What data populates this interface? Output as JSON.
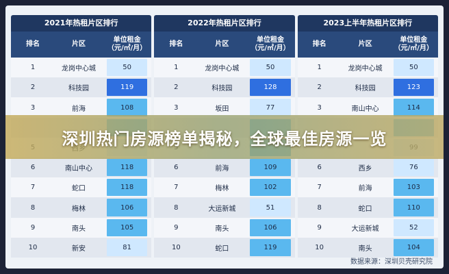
{
  "headline": "深圳热门房源榜单揭秘，全球最佳房源一览",
  "source": "数据来源：深圳贝壳研究院",
  "columns": {
    "rank": "排名",
    "district": "片区",
    "rent": "单位租金\n（元/㎡/月）"
  },
  "colors": {
    "title_bg": "#1f3760",
    "header_bg": "#2a4a7c",
    "rent_light": "#cfe8ff",
    "rent_mid": "#5ab8ef",
    "rent_dark": "#2f6fe0"
  },
  "panels": [
    {
      "title": "2021年热租片区排行",
      "rows": [
        {
          "rank": "1",
          "district": "龙岗中心城",
          "rent": "50",
          "shade": "light"
        },
        {
          "rank": "2",
          "district": "科技园",
          "rent": "119",
          "shade": "dark"
        },
        {
          "rank": "3",
          "district": "前海",
          "rent": "108",
          "shade": "mid"
        },
        {
          "rank": "",
          "district": "",
          "rent": "",
          "shade": "mid"
        },
        {
          "rank": "5",
          "district": "西乡",
          "rent": "",
          "shade": "light"
        },
        {
          "rank": "6",
          "district": "南山中心",
          "rent": "118",
          "shade": "mid"
        },
        {
          "rank": "7",
          "district": "蛇口",
          "rent": "118",
          "shade": "mid"
        },
        {
          "rank": "8",
          "district": "梅林",
          "rent": "106",
          "shade": "mid"
        },
        {
          "rank": "9",
          "district": "南头",
          "rent": "105",
          "shade": "mid"
        },
        {
          "rank": "10",
          "district": "新安",
          "rent": "81",
          "shade": "light"
        }
      ]
    },
    {
      "title": "2022年热租片区排行",
      "rows": [
        {
          "rank": "1",
          "district": "龙岗中心城",
          "rent": "50",
          "shade": "light"
        },
        {
          "rank": "2",
          "district": "科技园",
          "rent": "128",
          "shade": "dark"
        },
        {
          "rank": "3",
          "district": "坂田",
          "rent": "77",
          "shade": "light"
        },
        {
          "rank": "",
          "district": "",
          "rent": "",
          "shade": "mid"
        },
        {
          "rank": "5",
          "district": "",
          "rent": "",
          "shade": "mid"
        },
        {
          "rank": "6",
          "district": "前海",
          "rent": "109",
          "shade": "mid"
        },
        {
          "rank": "7",
          "district": "梅林",
          "rent": "102",
          "shade": "mid"
        },
        {
          "rank": "8",
          "district": "大运新城",
          "rent": "51",
          "shade": "light"
        },
        {
          "rank": "9",
          "district": "南头",
          "rent": "106",
          "shade": "mid"
        },
        {
          "rank": "10",
          "district": "蛇口",
          "rent": "119",
          "shade": "mid"
        }
      ]
    },
    {
      "title": "2023上半年热租片区排行",
      "rows": [
        {
          "rank": "1",
          "district": "龙岗中心城",
          "rent": "50",
          "shade": "light"
        },
        {
          "rank": "2",
          "district": "科技园",
          "rent": "123",
          "shade": "dark"
        },
        {
          "rank": "3",
          "district": "南山中心",
          "rent": "114",
          "shade": "mid"
        },
        {
          "rank": "",
          "district": "",
          "rent": "",
          "shade": "mid"
        },
        {
          "rank": "",
          "district": "",
          "rent": "99",
          "shade": "light"
        },
        {
          "rank": "6",
          "district": "西乡",
          "rent": "76",
          "shade": "light"
        },
        {
          "rank": "7",
          "district": "前海",
          "rent": "103",
          "shade": "mid"
        },
        {
          "rank": "8",
          "district": "蛇口",
          "rent": "110",
          "shade": "mid"
        },
        {
          "rank": "9",
          "district": "大运新城",
          "rent": "52",
          "shade": "light"
        },
        {
          "rank": "10",
          "district": "南头",
          "rent": "104",
          "shade": "mid"
        }
      ]
    }
  ]
}
